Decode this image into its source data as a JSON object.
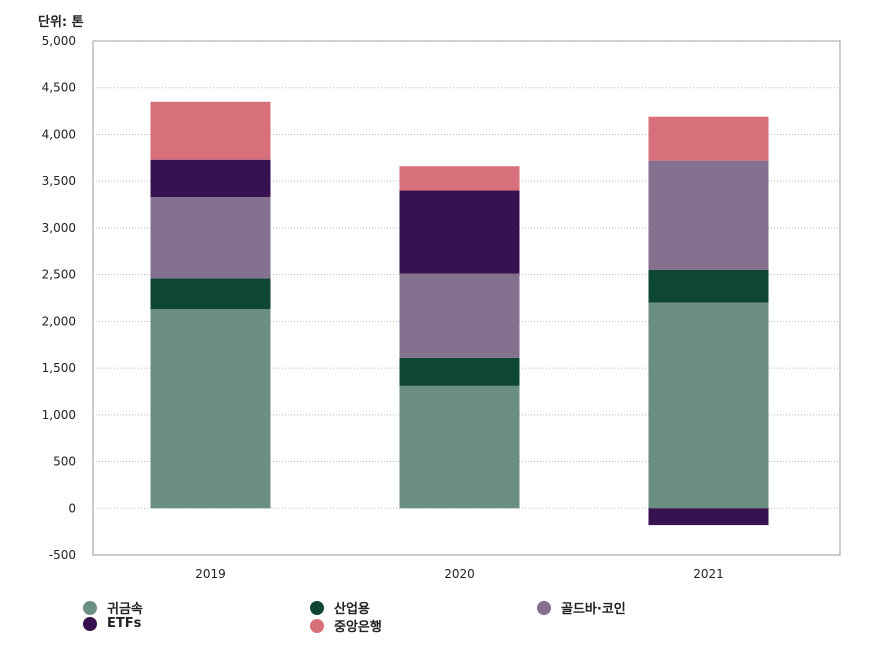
{
  "unit_label": "단위: 톤",
  "chart_data": {
    "type": "bar",
    "stacked": true,
    "categories": [
      "2019",
      "2020",
      "2021"
    ],
    "ylim": [
      -500,
      5000
    ],
    "yticks": [
      5000,
      4500,
      4000,
      3500,
      3000,
      2500,
      2000,
      1500,
      1000,
      500,
      0,
      -500
    ],
    "ytick_labels": [
      "5,000",
      "4,500",
      "4,000",
      "3,500",
      "3,000",
      "2,500",
      "2,000",
      "1,500",
      "1,000",
      "500",
      "0",
      "-500"
    ],
    "grid": true,
    "legend_position": "bottom",
    "series": [
      {
        "name": "귀금속",
        "color": "#6b8f80",
        "values": [
          2130,
          1310,
          2200
        ]
      },
      {
        "name": "산업용",
        "color": "#0e4634",
        "values": [
          330,
          300,
          350
        ]
      },
      {
        "name": "골드바·코인",
        "color": "#84708f",
        "values": [
          870,
          900,
          1170
        ]
      },
      {
        "name": "ETFs",
        "color": "#371150",
        "values": [
          400,
          890,
          -180
        ]
      },
      {
        "name": "중앙은행",
        "color": "#d8707c",
        "values": [
          620,
          260,
          470
        ]
      }
    ]
  },
  "legend": [
    {
      "label": "귀금속",
      "color": "#6b8f80"
    },
    {
      "label": "산업용",
      "color": "#0e4634"
    },
    {
      "label": "골드바·코인",
      "color": "#84708f"
    },
    {
      "label": "ETFs",
      "color": "#371150"
    },
    {
      "label": "중앙은행",
      "color": "#d8707c"
    }
  ]
}
